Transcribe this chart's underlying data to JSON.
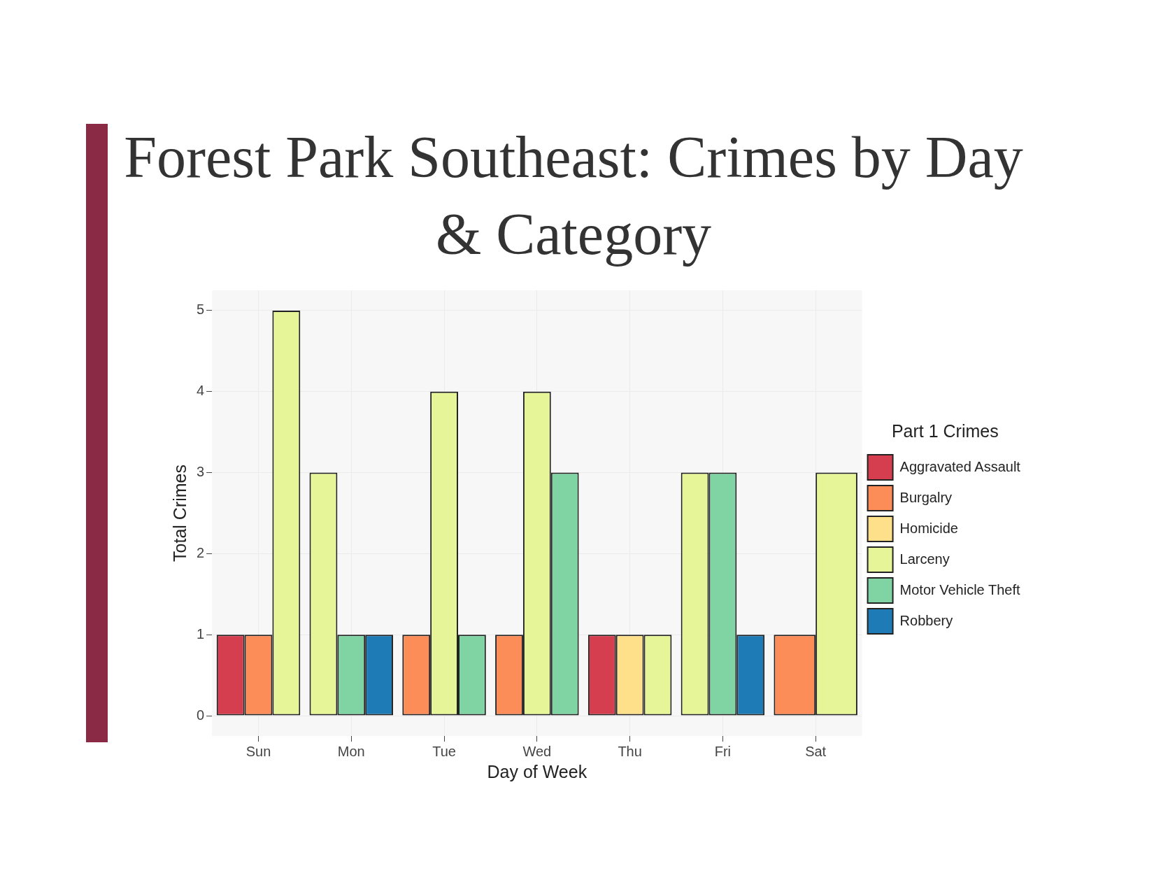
{
  "chart_data": {
    "type": "bar",
    "title": "Forest Park Southeast: Crimes by Day & Category",
    "xlabel": "Day of Week",
    "ylabel": "Total Crimes",
    "legend_title": "Part 1 Crimes",
    "categories": [
      "Sun",
      "Mon",
      "Tue",
      "Wed",
      "Thu",
      "Fri",
      "Sat"
    ],
    "series": [
      {
        "name": "Aggravated Assault",
        "color": "#d53e4f",
        "values": [
          1,
          null,
          null,
          null,
          1,
          null,
          null
        ]
      },
      {
        "name": "Burgalry",
        "color": "#fc8d59",
        "values": [
          1,
          null,
          1,
          1,
          null,
          null,
          1
        ]
      },
      {
        "name": "Homicide",
        "color": "#fee08b",
        "values": [
          null,
          null,
          null,
          null,
          1,
          null,
          null
        ]
      },
      {
        "name": "Larceny",
        "color": "#e6f598",
        "values": [
          5,
          3,
          4,
          4,
          1,
          3,
          3
        ]
      },
      {
        "name": "Motor Vehicle Theft",
        "color": "#80d4a4",
        "values": [
          null,
          1,
          1,
          3,
          null,
          3,
          null
        ]
      },
      {
        "name": "Robbery",
        "color": "#1f7bb6",
        "values": [
          null,
          1,
          null,
          null,
          null,
          1,
          null
        ]
      }
    ],
    "ylim": [
      -0.25,
      5.25
    ],
    "yticks": [
      0,
      1,
      2,
      3,
      4,
      5
    ],
    "grid": true,
    "legend": "right"
  }
}
